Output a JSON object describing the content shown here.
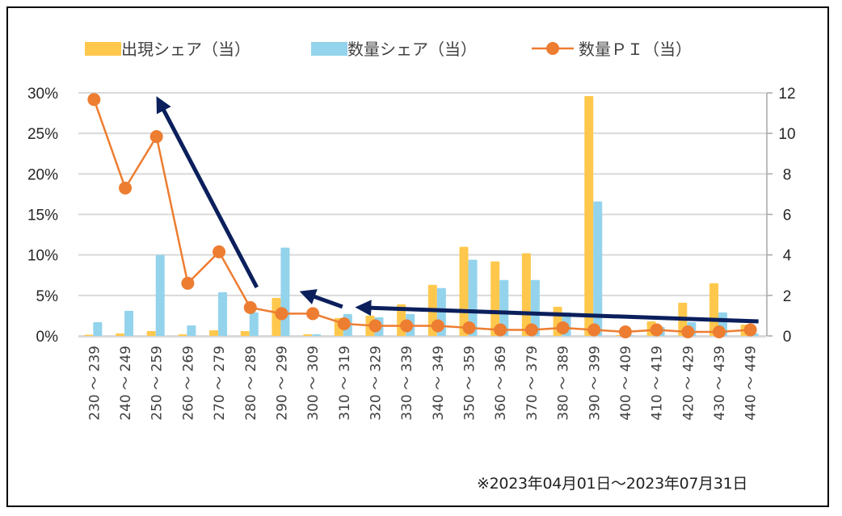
{
  "chart_data": {
    "type": "bar",
    "title": "",
    "xlabel": "",
    "ylabel": "",
    "y2label": "",
    "categories": [
      "230～239",
      "240～249",
      "250～259",
      "260～269",
      "270～279",
      "280～289",
      "290～299",
      "300～309",
      "310～319",
      "320～329",
      "330～339",
      "340～349",
      "350～359",
      "360～369",
      "370～379",
      "380～389",
      "390～399",
      "400～409",
      "410～419",
      "420～429",
      "430～439",
      "440～449"
    ],
    "series": [
      {
        "name": "出現シェア（当）",
        "type": "bar",
        "axis": "left",
        "color": "#FFC84D",
        "values": [
          0.15,
          0.3,
          0.6,
          0.2,
          0.7,
          0.6,
          4.7,
          0.2,
          2.2,
          2.5,
          3.9,
          6.3,
          11.0,
          9.2,
          10.2,
          3.6,
          29.6,
          0.1,
          1.8,
          4.1,
          6.5,
          1.4
        ]
      },
      {
        "name": "数量シェア（当）",
        "type": "bar",
        "axis": "left",
        "color": "#93D3EC",
        "values": [
          1.7,
          3.1,
          10.0,
          1.3,
          5.4,
          2.9,
          10.9,
          0.2,
          2.7,
          2.3,
          2.7,
          5.9,
          9.4,
          6.9,
          6.9,
          2.9,
          16.6,
          0.1,
          1.1,
          1.7,
          2.9,
          0.3
        ]
      },
      {
        "name": "数量ＰＩ（当）",
        "type": "line",
        "axis": "right",
        "color": "#ED7D31",
        "values": [
          11.67,
          7.3,
          9.84,
          2.6,
          4.15,
          1.4,
          1.1,
          1.1,
          0.6,
          0.5,
          0.5,
          0.5,
          0.4,
          0.3,
          0.3,
          0.4,
          0.3,
          0.2,
          0.3,
          0.2,
          0.2,
          0.3
        ]
      }
    ],
    "ylim": [
      0,
      30
    ],
    "y_ticks": [
      "0%",
      "5%",
      "10%",
      "15%",
      "20%",
      "25%",
      "30%"
    ],
    "y2lim": [
      0,
      12
    ],
    "y2_ticks": [
      "0",
      "2",
      "4",
      "6",
      "8",
      "10",
      "12"
    ],
    "grid": true,
    "legend_position": "top",
    "annotations": [
      {
        "type": "arrow",
        "color": "#0B1F5C",
        "from_category": "280～289",
        "from_value_pct": 6.0,
        "to_category": "250～259",
        "to_value_pct": 28.8
      },
      {
        "type": "arrow",
        "color": "#0B1F5C",
        "from_category": "310～319",
        "from_value_pct": 3.6,
        "to_category": "300～309",
        "to_value_pct": 5.2
      },
      {
        "type": "arrow",
        "color": "#0B1F5C",
        "from_category": "440～449",
        "from_value_pct": 1.8,
        "to_category": "320～329",
        "to_value_pct": 3.5
      }
    ]
  },
  "footnote": "※2023年04月01日～2023年07月31日"
}
